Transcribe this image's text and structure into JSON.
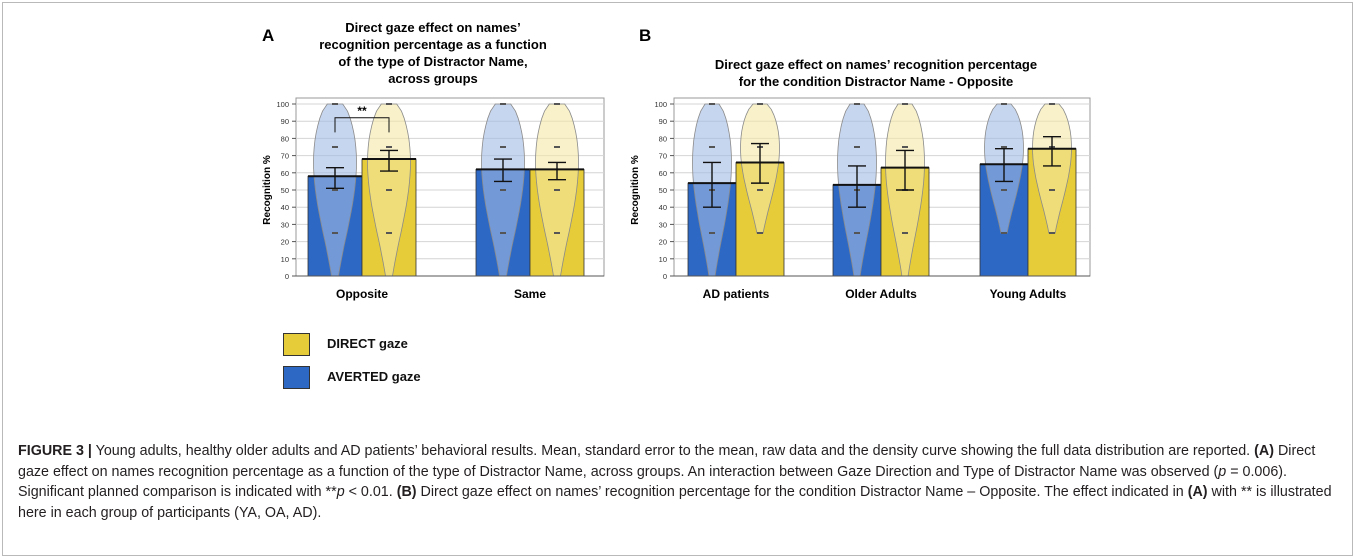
{
  "figure": {
    "panel_a_letter": "A",
    "panel_b_letter": "B",
    "legend": [
      {
        "label": "DIRECT gaze",
        "color": "#e6cc38"
      },
      {
        "label": "AVERTED gaze",
        "color": "#2d68c4"
      }
    ],
    "caption": {
      "fig_label": "FIGURE 3 |",
      "s1": " Young adults, healthy older adults and AD patients’ behavioral results. Mean, standard error to the mean, raw data and the density curve showing the full data distribution are reported. ",
      "a_ref": "(A)",
      "s2": " Direct gaze effect on names recognition percentage as a function of the type of Distractor Name, across groups. An interaction between Gaze Direction and Type of Distractor Name was observed (",
      "p_var": "p",
      "s3": " = 0.006). Significant planned comparison is indicated with **",
      "p_var2": "p",
      "s4": " < 0.01. ",
      "b_ref": "(B)",
      "s5": " Direct gaze effect on names’ recognition percentage for the condition Distractor Name – Opposite. The effect indicated in ",
      "a_ref2": "(A)",
      "s6": " with ** is illustrated here in each group of participants (YA, OA, AD)."
    }
  },
  "chart_data": [
    {
      "type": "bar",
      "panel": "A",
      "title_lines": [
        "Direct gaze effect on names’",
        "recognition percentage as a function",
        "of the type of Distractor Name,",
        "across groups"
      ],
      "xlabel": "",
      "ylabel": "Recognition %",
      "ylim": [
        0,
        100
      ],
      "yticks": [
        0,
        10,
        20,
        30,
        40,
        50,
        60,
        70,
        80,
        90,
        100
      ],
      "categories": [
        "Opposite",
        "Same"
      ],
      "series": [
        {
          "name": "AVERTED gaze",
          "color": "#2d68c4",
          "values": [
            58,
            62
          ],
          "err_low": [
            51,
            55
          ],
          "err_high": [
            63,
            68
          ]
        },
        {
          "name": "DIRECT gaze",
          "color": "#e6cc38",
          "values": [
            68,
            62
          ],
          "err_low": [
            61,
            56
          ],
          "err_high": [
            73,
            66
          ]
        }
      ],
      "annotation": "**",
      "grid": true
    },
    {
      "type": "bar",
      "panel": "B",
      "title_lines": [
        "Direct gaze effect on names’ recognition percentage",
        "for the condition Distractor Name - Opposite"
      ],
      "xlabel": "",
      "ylabel": "Recognition %",
      "ylim": [
        0,
        100
      ],
      "yticks": [
        0,
        10,
        20,
        30,
        40,
        50,
        60,
        70,
        80,
        90,
        100
      ],
      "categories": [
        "AD patients",
        "Older Adults",
        "Young Adults"
      ],
      "series": [
        {
          "name": "AVERTED gaze",
          "color": "#2d68c4",
          "values": [
            54,
            53,
            65
          ],
          "err_low": [
            40,
            40,
            55
          ],
          "err_high": [
            66,
            64,
            74
          ]
        },
        {
          "name": "DIRECT gaze",
          "color": "#e6cc38",
          "values": [
            66,
            63,
            74
          ],
          "err_low": [
            54,
            50,
            64
          ],
          "err_high": [
            77,
            73,
            81
          ]
        }
      ],
      "grid": true
    }
  ]
}
